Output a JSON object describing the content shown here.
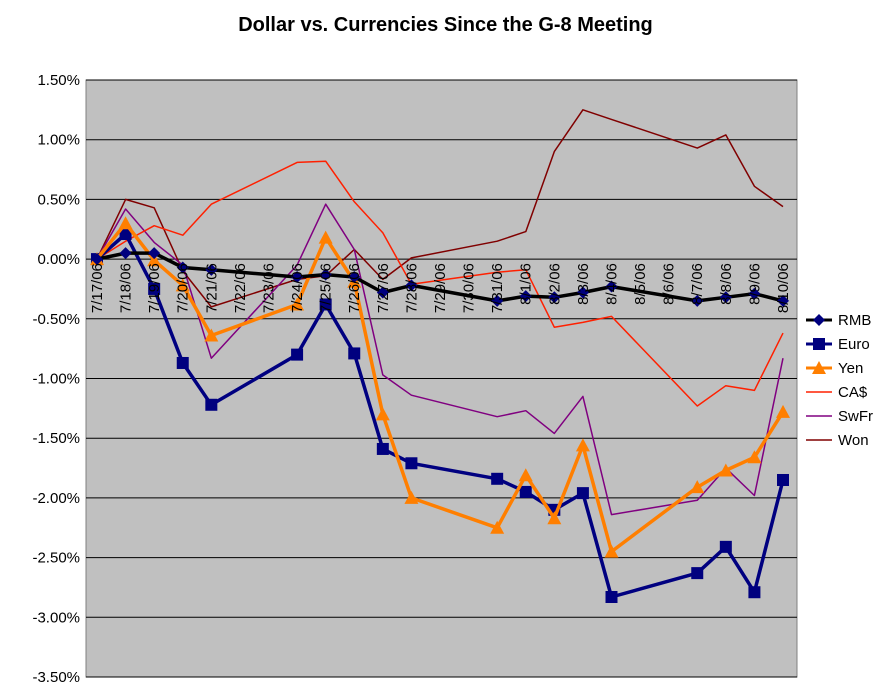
{
  "chart_data": {
    "type": "line",
    "title": "Dollar vs. Currencies Since the G-8 Meeting",
    "xlabel": "",
    "ylabel": "",
    "ylim": [
      -3.5,
      1.5
    ],
    "ytick_step": 0.5,
    "grid": true,
    "legend_position": "right",
    "x_labels": [
      "7/17/06",
      "7/18/06",
      "7/19/06",
      "7/20/06",
      "7/21/06",
      "7/22/06",
      "7/23/06",
      "7/24/06",
      "7/25/06",
      "7/26/06",
      "7/27/06",
      "7/28/06",
      "7/29/06",
      "7/30/06",
      "7/31/06",
      "8/1/06",
      "8/2/06",
      "8/3/06",
      "8/4/06",
      "8/5/06",
      "8/6/06",
      "8/7/06",
      "8/8/06",
      "8/9/06",
      "8/10/06"
    ],
    "y_tick_labels": [
      "1.50%",
      "1.00%",
      "0.50%",
      "0.00%",
      "-0.50%",
      "-1.00%",
      "-1.50%",
      "-2.00%",
      "-2.50%",
      "-3.00%",
      "-3.50%"
    ],
    "series": [
      {
        "name": "RMB",
        "color": "#000000",
        "marker": "diamond",
        "marker_color": "#00007f",
        "x": [
          0,
          1,
          2,
          3,
          4,
          7,
          8,
          9,
          10,
          11,
          14,
          15,
          16,
          17,
          18,
          21,
          22,
          23,
          24
        ],
        "values": [
          0.0,
          0.05,
          0.05,
          -0.07,
          -0.09,
          -0.15,
          -0.13,
          -0.15,
          -0.28,
          -0.22,
          -0.35,
          -0.31,
          -0.32,
          -0.28,
          -0.23,
          -0.35,
          -0.32,
          -0.29,
          -0.35
        ]
      },
      {
        "name": "Euro",
        "color": "#000080",
        "marker": "square",
        "marker_color": "#00007f",
        "x": [
          0,
          1,
          2,
          3,
          4,
          7,
          8,
          9,
          10,
          11,
          14,
          15,
          16,
          17,
          18,
          21,
          22,
          23,
          24
        ],
        "values": [
          0.0,
          0.21,
          -0.25,
          -0.87,
          -1.22,
          -0.8,
          -0.38,
          -0.79,
          -1.59,
          -1.71,
          -1.84,
          -1.95,
          -2.1,
          -1.96,
          -2.83,
          -2.63,
          -2.41,
          -2.79,
          -1.85
        ]
      },
      {
        "name": "Yen",
        "color": "#ff7f00",
        "marker": "triangle",
        "marker_color": "#ff7f00",
        "x": [
          0,
          1,
          2,
          3,
          4,
          7,
          8,
          9,
          10,
          11,
          14,
          15,
          16,
          17,
          18,
          21,
          22,
          23,
          24
        ],
        "values": [
          0.0,
          0.3,
          -0.01,
          -0.22,
          -0.64,
          -0.38,
          0.18,
          -0.19,
          -1.3,
          -2.0,
          -2.25,
          -1.81,
          -2.17,
          -1.56,
          -2.45,
          -1.91,
          -1.77,
          -1.66,
          -1.28
        ]
      },
      {
        "name": "CA$",
        "color": "#ff2000",
        "marker": "none",
        "marker_color": "#ff2000",
        "x": [
          0,
          1,
          2,
          3,
          4,
          7,
          8,
          9,
          10,
          11,
          14,
          15,
          16,
          17,
          18,
          21,
          22,
          23,
          24
        ],
        "values": [
          0.0,
          0.15,
          0.28,
          0.2,
          0.46,
          0.81,
          0.82,
          0.48,
          0.22,
          -0.21,
          -0.11,
          -0.09,
          -0.57,
          -0.53,
          -0.48,
          -1.23,
          -1.06,
          -1.1,
          -0.62
        ]
      },
      {
        "name": "SwFr",
        "color": "#800080",
        "marker": "none",
        "marker_color": "#800080",
        "x": [
          0,
          1,
          2,
          3,
          4,
          7,
          8,
          9,
          10,
          11,
          14,
          15,
          16,
          17,
          18,
          21,
          22,
          23,
          24
        ],
        "values": [
          0.0,
          0.42,
          0.14,
          -0.05,
          -0.83,
          -0.05,
          0.46,
          0.08,
          -0.97,
          -1.14,
          -1.32,
          -1.27,
          -1.46,
          -1.15,
          -2.14,
          -2.02,
          -1.75,
          -1.98,
          -0.83
        ]
      },
      {
        "name": "Won",
        "color": "#800000",
        "marker": "none",
        "marker_color": "#800000",
        "x": [
          0,
          1,
          2,
          3,
          4,
          7,
          8,
          9,
          10,
          11,
          14,
          15,
          16,
          17,
          18,
          21,
          22,
          23,
          24
        ],
        "values": [
          0.0,
          0.5,
          0.43,
          -0.1,
          -0.4,
          -0.17,
          -0.14,
          0.08,
          -0.17,
          0.01,
          0.15,
          0.23,
          0.9,
          1.25,
          1.17,
          0.93,
          1.04,
          0.61,
          0.44
        ]
      }
    ]
  }
}
